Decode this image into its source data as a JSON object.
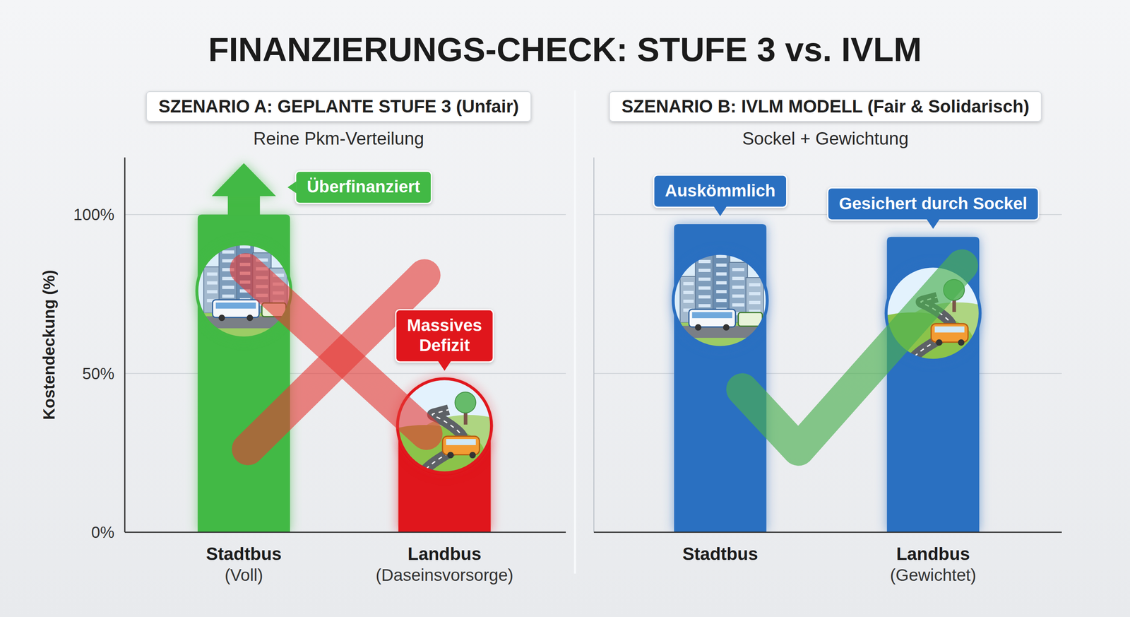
{
  "title": "FINANZIERUNGS-CHECK: STUFE 3 vs. IVLM",
  "chart_data": [
    {
      "type": "bar",
      "title": "SZENARIO A: GEPLANTE STUFE 3 (Unfair)",
      "subtitle": "Reine Pkm-Verteilung",
      "y_label": "Kostendeckung (%)",
      "categories": [
        "Stadtbus",
        "Landbus"
      ],
      "category_notes": [
        "(Voll)",
        "(Daseinsvorsorge)"
      ],
      "values": [
        100,
        30
      ],
      "colors": [
        "#43b944",
        "#e0181e"
      ],
      "callouts": [
        "Überfinanziert",
        "Massives Defizit"
      ],
      "ylim": [
        0,
        118
      ],
      "yticks": [
        {
          "value": 0,
          "label": "0%"
        },
        {
          "value": 50,
          "label": "50%"
        },
        {
          "value": 100,
          "label": "100%"
        }
      ],
      "grid": true
    },
    {
      "type": "bar",
      "title": "SZENARIO B: IVLM MODELL (Fair & Solidarisch)",
      "subtitle": "Sockel + Gewichtung",
      "categories": [
        "Stadtbus",
        "Landbus"
      ],
      "category_notes": [
        null,
        "(Gewichtet)"
      ],
      "values": [
        97,
        93
      ],
      "color": "#2a6fc1",
      "callouts": [
        "Auskömmlich",
        "Gesichert durch Sockel"
      ],
      "ylim": [
        0,
        118
      ],
      "yticks": [
        0,
        50,
        100
      ],
      "grid": true,
      "tick_labels": "x"
    }
  ]
}
